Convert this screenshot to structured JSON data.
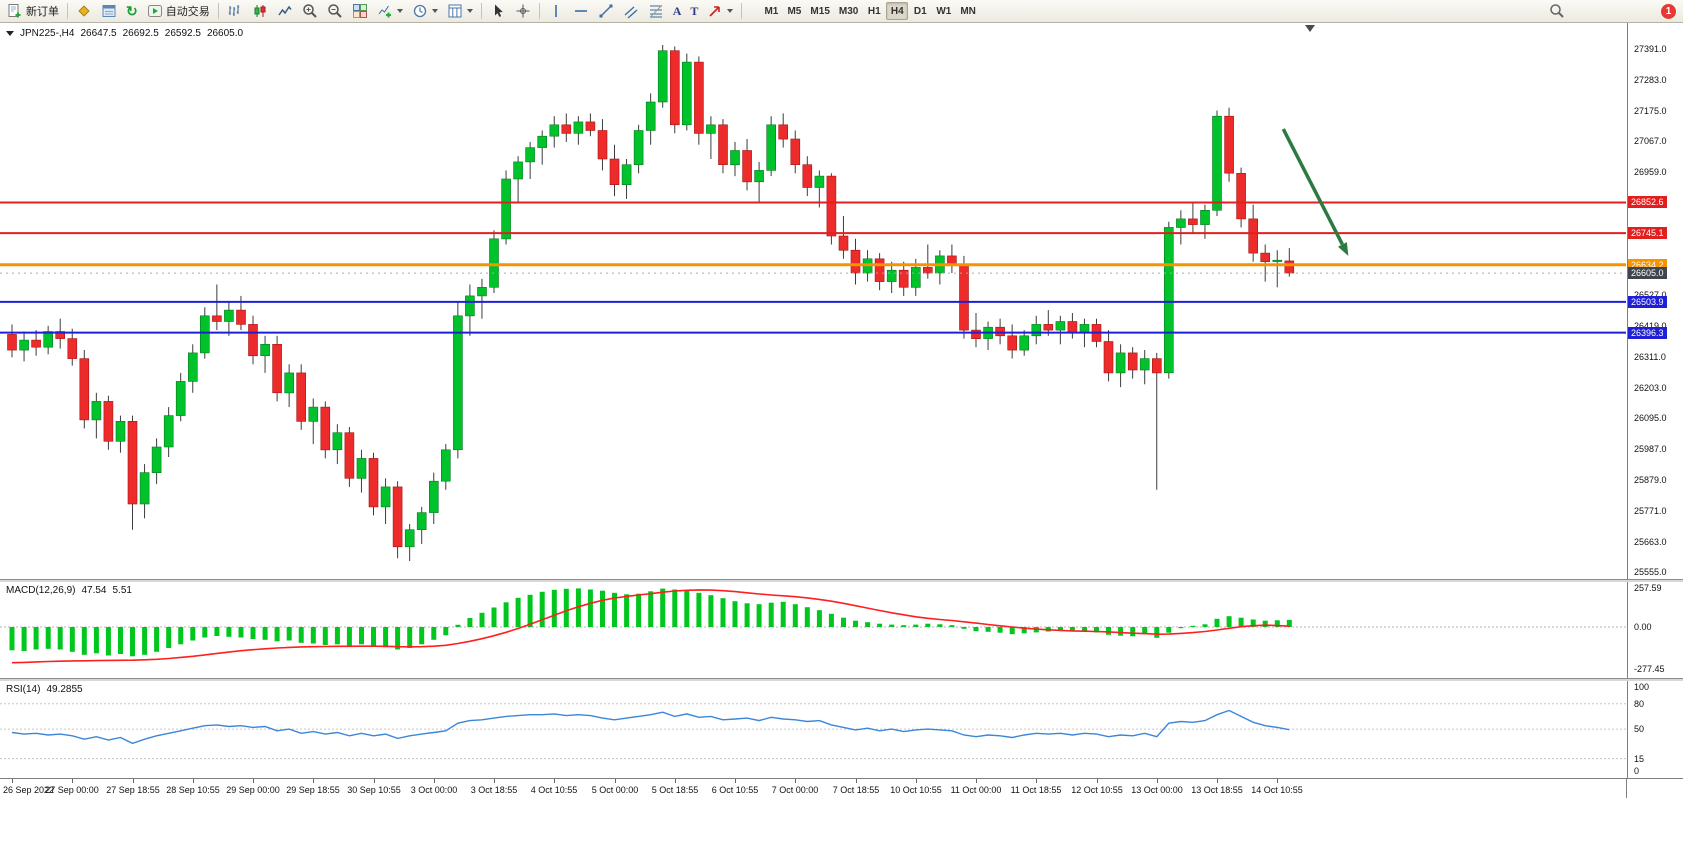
{
  "toolbar": {
    "new_order_label": "新订单",
    "autotrading_label": "自动交易",
    "timeframes": [
      "M1",
      "M5",
      "M15",
      "M30",
      "H1",
      "H4",
      "D1",
      "W1",
      "MN"
    ],
    "active_timeframe": "H4",
    "notification_badge": "1",
    "glyphs": {
      "refresh": "↻",
      "text_tool": "A",
      "label_tool": "T"
    }
  },
  "header": {
    "symbol_period": "JPN225-,H4",
    "open": "26647.5",
    "high": "26692.5",
    "low": "26592.5",
    "close": "26605.0"
  },
  "chart_data": [
    {
      "type": "candlestick",
      "title": "JPN225-,H4",
      "timeframe": "H4",
      "y_range": [
        25532,
        27482
      ],
      "y_ticks": [
        27391,
        27283,
        27175,
        27067,
        26959,
        26851,
        26743,
        26635,
        26527,
        26419,
        26311,
        26203,
        26095,
        25987,
        25879,
        25771,
        25663,
        25555
      ],
      "y_tick_labels": [
        "27391.0",
        "27283.0",
        "27175.0",
        "27067.0",
        "26959.0",
        "26851.0",
        "26743.0",
        "26635.0",
        "26527.0",
        "26419.0",
        "26311.0",
        "26203.0",
        "26095.0",
        "25987.0",
        "25879.0",
        "25771.0",
        "25663.0",
        "25555.0"
      ],
      "x_labels": [
        "26 Sep 2022",
        "27 Sep 00:00",
        "27 Sep 18:55",
        "28 Sep 10:55",
        "29 Sep 00:00",
        "29 Sep 18:55",
        "30 Sep 10:55",
        "3 Oct 00:00",
        "3 Oct 18:55",
        "4 Oct 10:55",
        "5 Oct 00:00",
        "5 Oct 18:55",
        "6 Oct 10:55",
        "7 Oct 00:00",
        "7 Oct 18:55",
        "10 Oct 10:55",
        "11 Oct 00:00",
        "11 Oct 18:55",
        "12 Oct 10:55",
        "13 Oct 00:00",
        "13 Oct 18:55",
        "14 Oct 10:55"
      ],
      "label_every": 5,
      "up_color": "#00c32b",
      "down_color": "#ee2b2b",
      "wick_color": "#3c3c3c",
      "levels": [
        {
          "label": "26852.6",
          "price": 26852.6,
          "color": "#e21f1f",
          "width": 2
        },
        {
          "label": "26745.1",
          "price": 26745.1,
          "color": "#e21f1f",
          "width": 2
        },
        {
          "label": "26634.2",
          "price": 26634.2,
          "color": "#f59300",
          "width": 3
        },
        {
          "label": "26503.9",
          "price": 26503.9,
          "color": "#1f1fd6",
          "width": 2
        },
        {
          "label": "26396.3",
          "price": 26396.3,
          "color": "#1f1fd6",
          "width": 2
        }
      ],
      "current_price": {
        "value": 26605.0,
        "label": "26605.0",
        "tag_color": "#3f454d"
      },
      "annotations": [
        {
          "type": "arrow",
          "x1_index": 105.5,
          "y1_price": 27110,
          "x2_index": 110.9,
          "y2_price": 26665,
          "color": "#2b7a3f"
        }
      ],
      "candles": [
        [
          26390,
          26425,
          26310,
          26335
        ],
        [
          26335,
          26400,
          26295,
          26370
        ],
        [
          26370,
          26405,
          26315,
          26345
        ],
        [
          26345,
          26420,
          26320,
          26400
        ],
        [
          26400,
          26445,
          26340,
          26375
        ],
        [
          26375,
          26410,
          26280,
          26305
        ],
        [
          26305,
          26335,
          26060,
          26090
        ],
        [
          26090,
          26185,
          26025,
          26155
        ],
        [
          26155,
          26175,
          25985,
          26015
        ],
        [
          26015,
          26105,
          25975,
          26085
        ],
        [
          26085,
          26105,
          25705,
          25795
        ],
        [
          25795,
          25935,
          25745,
          25905
        ],
        [
          25905,
          26025,
          25865,
          25995
        ],
        [
          25995,
          26135,
          25960,
          26105
        ],
        [
          26105,
          26255,
          26085,
          26225
        ],
        [
          26225,
          26355,
          26185,
          26325
        ],
        [
          26325,
          26485,
          26305,
          26455
        ],
        [
          26455,
          26565,
          26405,
          26435
        ],
        [
          26435,
          26505,
          26385,
          26475
        ],
        [
          26475,
          26525,
          26405,
          26425
        ],
        [
          26425,
          26455,
          26285,
          26315
        ],
        [
          26315,
          26385,
          26255,
          26355
        ],
        [
          26355,
          26385,
          26155,
          26185
        ],
        [
          26185,
          26285,
          26135,
          26255
        ],
        [
          26255,
          26285,
          26055,
          26085
        ],
        [
          26085,
          26165,
          26005,
          26135
        ],
        [
          26135,
          26155,
          25955,
          25985
        ],
        [
          25985,
          26075,
          25935,
          26045
        ],
        [
          26045,
          26065,
          25855,
          25885
        ],
        [
          25885,
          25985,
          25835,
          25955
        ],
        [
          25955,
          25975,
          25755,
          25785
        ],
        [
          25785,
          25885,
          25725,
          25855
        ],
        [
          25855,
          25875,
          25605,
          25645
        ],
        [
          25645,
          25725,
          25595,
          25705
        ],
        [
          25705,
          25785,
          25655,
          25765
        ],
        [
          25765,
          25905,
          25725,
          25875
        ],
        [
          25875,
          26005,
          25845,
          25985
        ],
        [
          25985,
          26505,
          25955,
          26455
        ],
        [
          26455,
          26565,
          26385,
          26525
        ],
        [
          26525,
          26585,
          26445,
          26555
        ],
        [
          26555,
          26755,
          26535,
          26725
        ],
        [
          26725,
          26965,
          26705,
          26935
        ],
        [
          26935,
          27015,
          26855,
          26995
        ],
        [
          26995,
          27065,
          26935,
          27045
        ],
        [
          27045,
          27105,
          26985,
          27085
        ],
        [
          27085,
          27155,
          27045,
          27125
        ],
        [
          27125,
          27165,
          27065,
          27095
        ],
        [
          27095,
          27155,
          27055,
          27135
        ],
        [
          27135,
          27165,
          27085,
          27105
        ],
        [
          27105,
          27145,
          26965,
          27005
        ],
        [
          27005,
          27055,
          26875,
          26915
        ],
        [
          26915,
          27005,
          26865,
          26985
        ],
        [
          26985,
          27125,
          26955,
          27105
        ],
        [
          27105,
          27235,
          27055,
          27205
        ],
        [
          27205,
          27405,
          27185,
          27385
        ],
        [
          27385,
          27400,
          27095,
          27125
        ],
        [
          27125,
          27375,
          27105,
          27345
        ],
        [
          27345,
          27365,
          27055,
          27095
        ],
        [
          27095,
          27155,
          27005,
          27125
        ],
        [
          27125,
          27145,
          26955,
          26985
        ],
        [
          26985,
          27065,
          26945,
          27035
        ],
        [
          27035,
          27075,
          26895,
          26925
        ],
        [
          26925,
          26995,
          26855,
          26965
        ],
        [
          26965,
          27155,
          26945,
          27125
        ],
        [
          27125,
          27165,
          27045,
          27075
        ],
        [
          27075,
          27105,
          26955,
          26985
        ],
        [
          26985,
          27015,
          26875,
          26905
        ],
        [
          26905,
          26965,
          26835,
          26945
        ],
        [
          26945,
          26955,
          26705,
          26735
        ],
        [
          26735,
          26805,
          26655,
          26685
        ],
        [
          26685,
          26725,
          26565,
          26605
        ],
        [
          26605,
          26685,
          26575,
          26655
        ],
        [
          26655,
          26675,
          26545,
          26575
        ],
        [
          26575,
          26645,
          26535,
          26615
        ],
        [
          26615,
          26645,
          26525,
          26555
        ],
        [
          26555,
          26655,
          26525,
          26625
        ],
        [
          26625,
          26705,
          26585,
          26605
        ],
        [
          26605,
          26685,
          26565,
          26665
        ],
        [
          26665,
          26705,
          26605,
          26635
        ],
        [
          26635,
          26665,
          26375,
          26405
        ],
        [
          26405,
          26465,
          26345,
          26375
        ],
        [
          26375,
          26435,
          26335,
          26415
        ],
        [
          26415,
          26445,
          26355,
          26385
        ],
        [
          26385,
          26425,
          26305,
          26335
        ],
        [
          26335,
          26405,
          26315,
          26385
        ],
        [
          26385,
          26455,
          26355,
          26425
        ],
        [
          26425,
          26475,
          26385,
          26405
        ],
        [
          26405,
          26455,
          26355,
          26435
        ],
        [
          26435,
          26465,
          26375,
          26395
        ],
        [
          26395,
          26445,
          26345,
          26425
        ],
        [
          26425,
          26445,
          26345,
          26365
        ],
        [
          26365,
          26405,
          26225,
          26255
        ],
        [
          26255,
          26355,
          26205,
          26325
        ],
        [
          26325,
          26345,
          26235,
          26265
        ],
        [
          26265,
          26335,
          26215,
          26305
        ],
        [
          26305,
          26325,
          25845,
          26255
        ],
        [
          26255,
          26785,
          26235,
          26765
        ],
        [
          26765,
          26825,
          26705,
          26795
        ],
        [
          26795,
          26855,
          26745,
          26775
        ],
        [
          26775,
          26845,
          26725,
          26825
        ],
        [
          26825,
          27175,
          26805,
          27155
        ],
        [
          27155,
          27185,
          26925,
          26955
        ],
        [
          26955,
          26975,
          26765,
          26795
        ],
        [
          26795,
          26845,
          26645,
          26675
        ],
        [
          26675,
          26705,
          26575,
          26645
        ],
        [
          26645,
          26685,
          26555,
          26650
        ],
        [
          26647.5,
          26692.5,
          26592.5,
          26605
        ]
      ]
    },
    {
      "type": "bar+line",
      "title": "MACD(12,26,9)",
      "main_value": "47.54",
      "signal_value": "5.51",
      "y_range": [
        -340,
        300
      ],
      "y_ticks": [
        257.59,
        0,
        -277.45
      ],
      "y_tick_labels": [
        "257.59",
        "0.00",
        "-277.45"
      ],
      "histogram_color": "#00c61e",
      "signal_color": "#ff1f1f",
      "histogram": [
        -155,
        -160,
        -150,
        -145,
        -150,
        -165,
        -185,
        -175,
        -190,
        -180,
        -195,
        -185,
        -165,
        -140,
        -115,
        -90,
        -70,
        -60,
        -65,
        -70,
        -80,
        -85,
        -95,
        -90,
        -105,
        -110,
        -120,
        -115,
        -125,
        -115,
        -130,
        -135,
        -150,
        -140,
        -115,
        -85,
        -55,
        15,
        60,
        95,
        130,
        165,
        195,
        215,
        235,
        248,
        255,
        257,
        250,
        242,
        228,
        218,
        222,
        238,
        256,
        250,
        242,
        228,
        212,
        192,
        172,
        158,
        152,
        162,
        168,
        152,
        132,
        112,
        88,
        62,
        42,
        32,
        22,
        16,
        12,
        16,
        22,
        18,
        12,
        -12,
        -28,
        -32,
        -38,
        -48,
        -42,
        -36,
        -30,
        -26,
        -30,
        -26,
        -36,
        -52,
        -58,
        -62,
        -48,
        -72,
        -38,
        -8,
        8,
        18,
        55,
        72,
        62,
        50,
        42,
        45,
        47.54
      ],
      "signal": [
        -238,
        -236,
        -233,
        -230,
        -228,
        -226,
        -225,
        -224,
        -223,
        -222,
        -221,
        -219,
        -215,
        -210,
        -203,
        -195,
        -186,
        -176,
        -167,
        -158,
        -151,
        -145,
        -140,
        -136,
        -133,
        -131,
        -130,
        -129,
        -129,
        -128,
        -128,
        -129,
        -131,
        -132,
        -131,
        -128,
        -122,
        -110,
        -95,
        -78,
        -58,
        -35,
        -10,
        18,
        48,
        78,
        108,
        135,
        158,
        178,
        193,
        204,
        213,
        222,
        232,
        240,
        245,
        247,
        246,
        242,
        236,
        228,
        220,
        213,
        208,
        202,
        194,
        184,
        172,
        158,
        142,
        126,
        110,
        95,
        81,
        68,
        58,
        50,
        43,
        35,
        26,
        17,
        8,
        0,
        -8,
        -14,
        -19,
        -23,
        -26,
        -28,
        -30,
        -33,
        -37,
        -41,
        -44,
        -48,
        -47,
        -43,
        -37,
        -30,
        -20,
        -9,
        2,
        9,
        12,
        10,
        5.51
      ]
    },
    {
      "type": "line",
      "title": "RSI(14)",
      "value": "49.2855",
      "y_range": [
        -8,
        107
      ],
      "y_ticks": [
        100,
        80,
        50,
        15,
        0
      ],
      "y_tick_labels": [
        "100",
        "80",
        "50",
        "15",
        "0"
      ],
      "levels": [
        80,
        50,
        15
      ],
      "line_color": "#3c86d8",
      "values": [
        46,
        44,
        45,
        43,
        44,
        42,
        38,
        41,
        37,
        40,
        33,
        38,
        42,
        45,
        48,
        51,
        54,
        55,
        53,
        54,
        52,
        53,
        48,
        50,
        45,
        47,
        44,
        46,
        42,
        45,
        42,
        44,
        39,
        42,
        44,
        46,
        48,
        57,
        60,
        61,
        63,
        65,
        66,
        67,
        67,
        68,
        66,
        67,
        66,
        63,
        61,
        63,
        65,
        67,
        70,
        65,
        68,
        64,
        65,
        61,
        62,
        63,
        60,
        64,
        62,
        61,
        59,
        60,
        55,
        52,
        49,
        51,
        48,
        50,
        47,
        49,
        50,
        49,
        48,
        43,
        41,
        43,
        42,
        40,
        43,
        45,
        44,
        45,
        43,
        45,
        44,
        41,
        43,
        42,
        45,
        41,
        57,
        59,
        58,
        60,
        67,
        72,
        65,
        58,
        54,
        52,
        49.2855
      ]
    }
  ]
}
